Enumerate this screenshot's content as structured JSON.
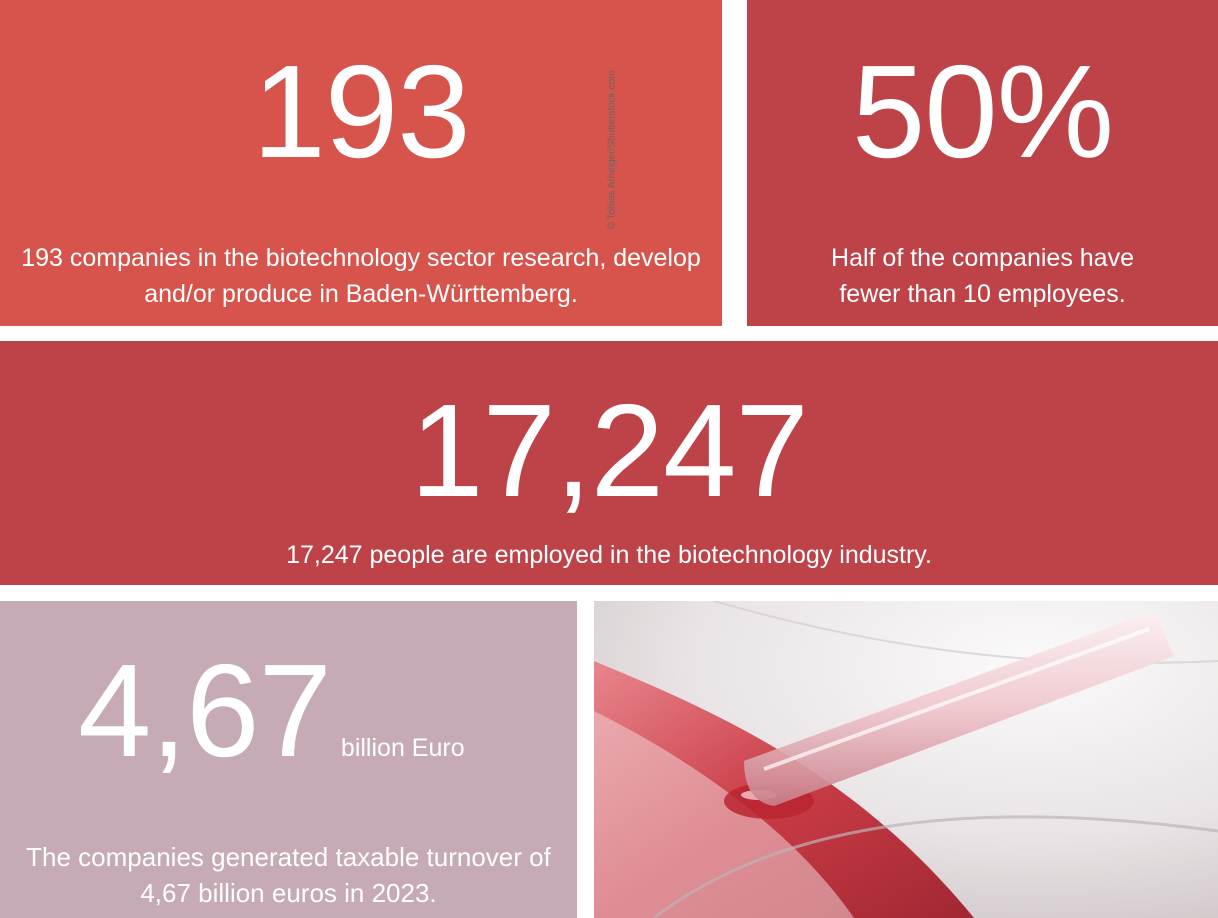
{
  "stats": {
    "companies": {
      "value": "193",
      "text": "193 companies in the biotechnology sector research, develop and/or produce in Baden-Württemberg."
    },
    "small_share": {
      "value": "50%",
      "text": "Half of the companies have fewer than 10 employees."
    },
    "employees": {
      "value": "17,247",
      "text": "17,247 people are employed in the biotechnology industry."
    },
    "turnover": {
      "value": "4,67",
      "unit": "billion Euro",
      "text": "The companies generated taxable turnover of 4,67 billion euros in 2023."
    }
  },
  "photo": {
    "credit": "© Tobias Arhelger/Shutterstock.com"
  },
  "colors": {
    "coral_red": "#d6544c",
    "crimson": "#bd4349",
    "mauve": "#c6aab5",
    "text": "#ffffff"
  }
}
